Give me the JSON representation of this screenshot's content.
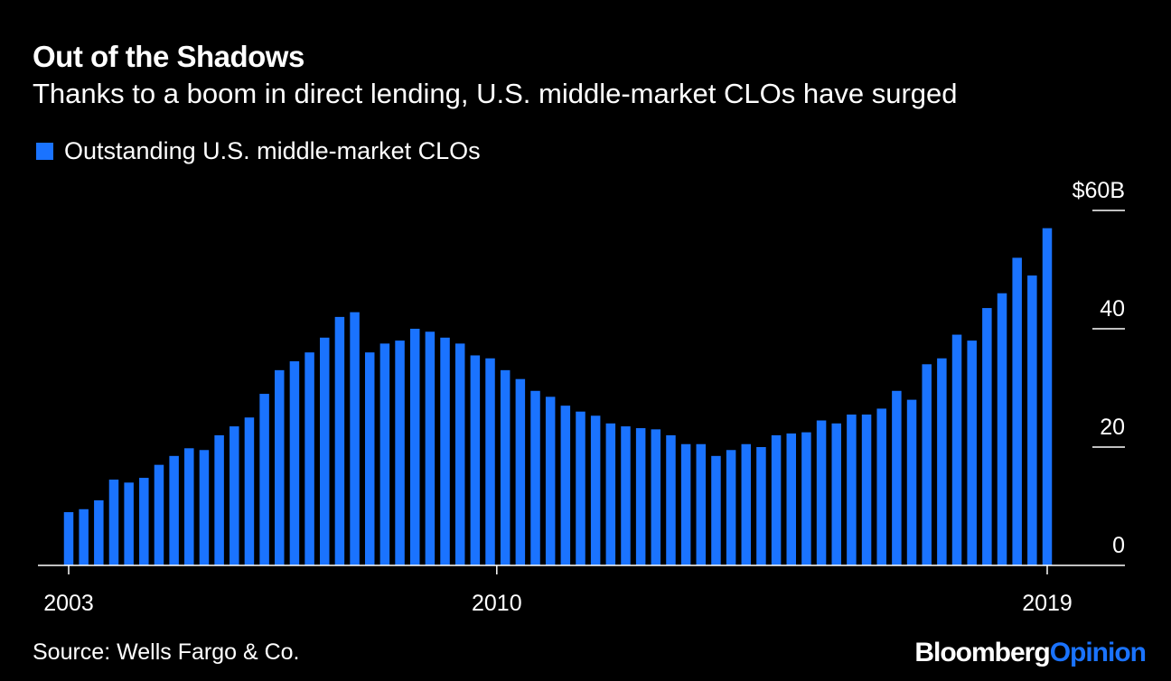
{
  "header": {
    "title": "Out of the Shadows",
    "subtitle": "Thanks to a boom in direct lending, U.S. middle-market CLOs have surged"
  },
  "legend": {
    "label": "Outstanding U.S. middle-market CLOs",
    "color": "#1a73ff"
  },
  "footer": {
    "source": "Source: Wells Fargo & Co.",
    "brand_main": "Bloomberg",
    "brand_accent": "Opinion"
  },
  "chart_data": {
    "type": "bar",
    "title": "Out of the Shadows",
    "subtitle": "Thanks to a boom in direct lending, U.S. middle-market CLOs have surged",
    "xlabel": "",
    "ylabel": "",
    "x_start": 2003,
    "x_end": 2019,
    "xticks": [
      {
        "value": 2003,
        "label": "2003"
      },
      {
        "value": 2010,
        "label": "2010"
      },
      {
        "value": 2019,
        "label": "2019"
      }
    ],
    "yticks": [
      {
        "value": 0,
        "label": "0"
      },
      {
        "value": 20,
        "label": "20"
      },
      {
        "value": 40,
        "label": "40"
      },
      {
        "value": 60,
        "label": "$60B"
      }
    ],
    "ylim": [
      0,
      60
    ],
    "grid": false,
    "series": [
      {
        "name": "Outstanding U.S. middle-market CLOs",
        "color": "#1a73ff",
        "values": [
          9,
          9.5,
          11,
          14.5,
          14,
          14.8,
          17,
          18.5,
          19.8,
          19.5,
          22,
          23.5,
          25,
          29,
          33,
          34.5,
          36,
          38.5,
          42,
          42.8,
          36,
          37.5,
          38,
          40,
          39.5,
          38.5,
          37.5,
          35.5,
          35,
          33,
          31.5,
          29.5,
          28.5,
          27,
          26,
          25.3,
          24,
          23.5,
          23.2,
          23,
          22,
          20.5,
          20.5,
          18.5,
          19.5,
          20.5,
          20,
          22,
          22.3,
          22.5,
          24.5,
          24,
          25.5,
          25.5,
          26.5,
          29.5,
          28,
          34,
          35,
          39,
          38,
          43.5,
          46,
          52,
          49,
          57
        ]
      }
    ]
  }
}
